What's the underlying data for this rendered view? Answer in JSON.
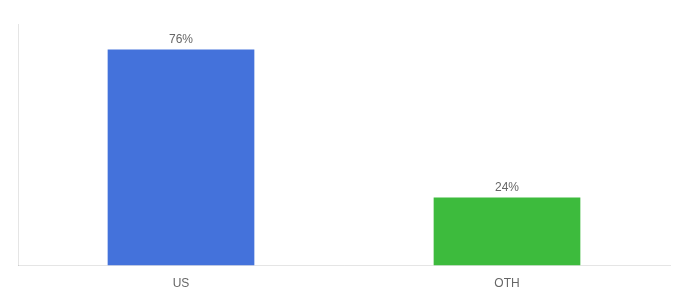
{
  "chart_data": {
    "type": "bar",
    "categories": [
      "US",
      "OTH"
    ],
    "values": [
      76,
      24
    ],
    "value_labels": [
      "76%",
      "24%"
    ],
    "colors": [
      "#4472db",
      "#3dbb3d"
    ],
    "ylim": [
      0,
      85
    ],
    "grid": false,
    "data_labels": true,
    "tick_labels": "x"
  }
}
